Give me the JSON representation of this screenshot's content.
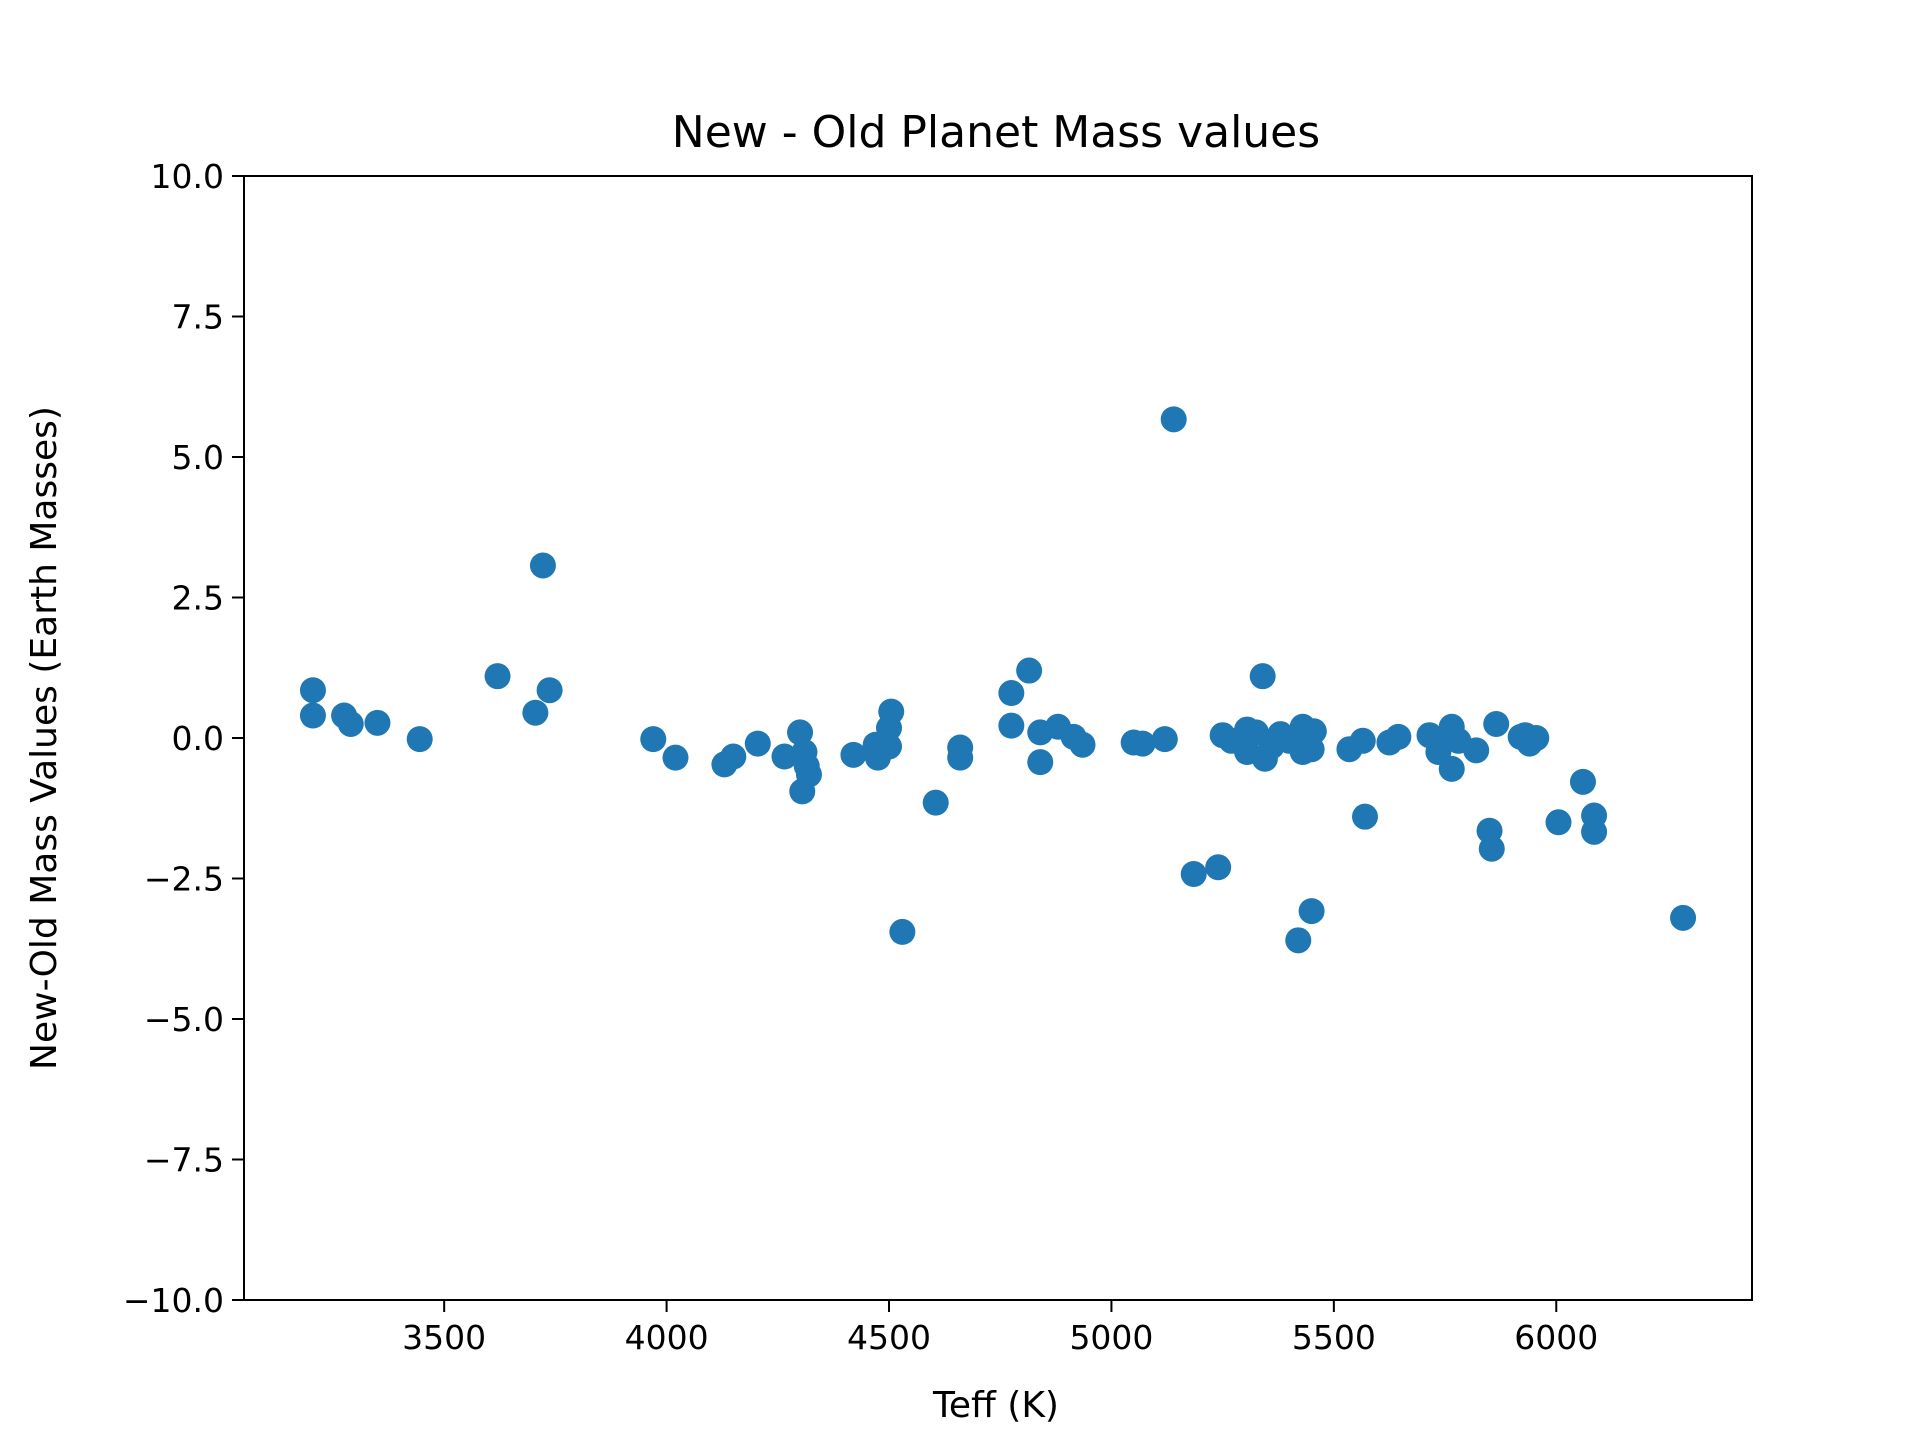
{
  "chart_data": {
    "type": "scatter",
    "title": "New - Old Planet Mass values",
    "xlabel": "Teff (K)",
    "ylabel": "New-Old Mass Values (Earth Masses)",
    "xlim": [
      3050,
      6440
    ],
    "ylim": [
      -10.0,
      10.0
    ],
    "xticks": [
      3500,
      4000,
      4500,
      5000,
      5500,
      6000
    ],
    "xtick_labels": [
      "3500",
      "4000",
      "4500",
      "5000",
      "5500",
      "6000"
    ],
    "yticks": [
      10.0,
      7.5,
      5.0,
      2.5,
      0.0,
      -2.5,
      -5.0,
      -7.5,
      -10.0
    ],
    "ytick_labels": [
      "10.0",
      "7.5",
      "5.0",
      "2.5",
      "0.0",
      "−2.5",
      "−5.0",
      "−7.5",
      "−10.0"
    ],
    "grid": false,
    "legend": "none",
    "marker_color": "#1f77b4",
    "series": [
      {
        "points": [
          [
            3205,
            0.85
          ],
          [
            3205,
            0.4
          ],
          [
            3275,
            0.4
          ],
          [
            3290,
            0.25
          ],
          [
            3350,
            0.27
          ],
          [
            3445,
            -0.02
          ],
          [
            3620,
            1.1
          ],
          [
            3705,
            0.45
          ],
          [
            3722,
            3.07
          ],
          [
            3737,
            0.85
          ],
          [
            3970,
            -0.02
          ],
          [
            4020,
            -0.35
          ],
          [
            4130,
            -0.47
          ],
          [
            4150,
            -0.33
          ],
          [
            4205,
            -0.1
          ],
          [
            4265,
            -0.33
          ],
          [
            4300,
            0.1
          ],
          [
            4305,
            -0.95
          ],
          [
            4310,
            -0.25
          ],
          [
            4315,
            -0.5
          ],
          [
            4320,
            -0.65
          ],
          [
            4420,
            -0.3
          ],
          [
            4470,
            -0.12
          ],
          [
            4475,
            -0.35
          ],
          [
            4500,
            0.18
          ],
          [
            4505,
            0.47
          ],
          [
            4500,
            -0.15
          ],
          [
            4530,
            -3.45
          ],
          [
            4605,
            -1.15
          ],
          [
            4660,
            -0.17
          ],
          [
            4660,
            -0.35
          ],
          [
            4775,
            0.8
          ],
          [
            4775,
            0.22
          ],
          [
            4815,
            1.2
          ],
          [
            4840,
            0.1
          ],
          [
            4840,
            -0.43
          ],
          [
            4880,
            0.2
          ],
          [
            4915,
            0.02
          ],
          [
            4935,
            -0.12
          ],
          [
            5050,
            -0.08
          ],
          [
            5070,
            -0.1
          ],
          [
            5120,
            -0.02
          ],
          [
            5140,
            5.67
          ],
          [
            5185,
            -2.42
          ],
          [
            5240,
            -2.3
          ],
          [
            5250,
            0.05
          ],
          [
            5270,
            -0.05
          ],
          [
            5305,
            0.15
          ],
          [
            5305,
            -0.25
          ],
          [
            5325,
            0.1
          ],
          [
            5340,
            1.1
          ],
          [
            5345,
            -0.37
          ],
          [
            5360,
            -0.15
          ],
          [
            5380,
            0.07
          ],
          [
            5400,
            -0.05
          ],
          [
            5420,
            -3.6
          ],
          [
            5430,
            -0.25
          ],
          [
            5430,
            0.2
          ],
          [
            5440,
            -0.05
          ],
          [
            5450,
            -0.2
          ],
          [
            5450,
            -3.08
          ],
          [
            5455,
            0.12
          ],
          [
            5535,
            -0.2
          ],
          [
            5565,
            -0.05
          ],
          [
            5570,
            -1.4
          ],
          [
            5625,
            -0.08
          ],
          [
            5645,
            0.02
          ],
          [
            5715,
            0.05
          ],
          [
            5735,
            -0.25
          ],
          [
            5750,
            0.0
          ],
          [
            5765,
            0.2
          ],
          [
            5765,
            -0.55
          ],
          [
            5780,
            -0.05
          ],
          [
            5820,
            -0.22
          ],
          [
            5850,
            -1.65
          ],
          [
            5855,
            -1.97
          ],
          [
            5865,
            0.25
          ],
          [
            5920,
            0.02
          ],
          [
            5930,
            0.05
          ],
          [
            5940,
            -0.1
          ],
          [
            5955,
            0.0
          ],
          [
            6005,
            -1.5
          ],
          [
            6060,
            -0.78
          ],
          [
            6085,
            -1.38
          ],
          [
            6085,
            -1.67
          ],
          [
            6285,
            -3.2
          ]
        ]
      }
    ]
  }
}
